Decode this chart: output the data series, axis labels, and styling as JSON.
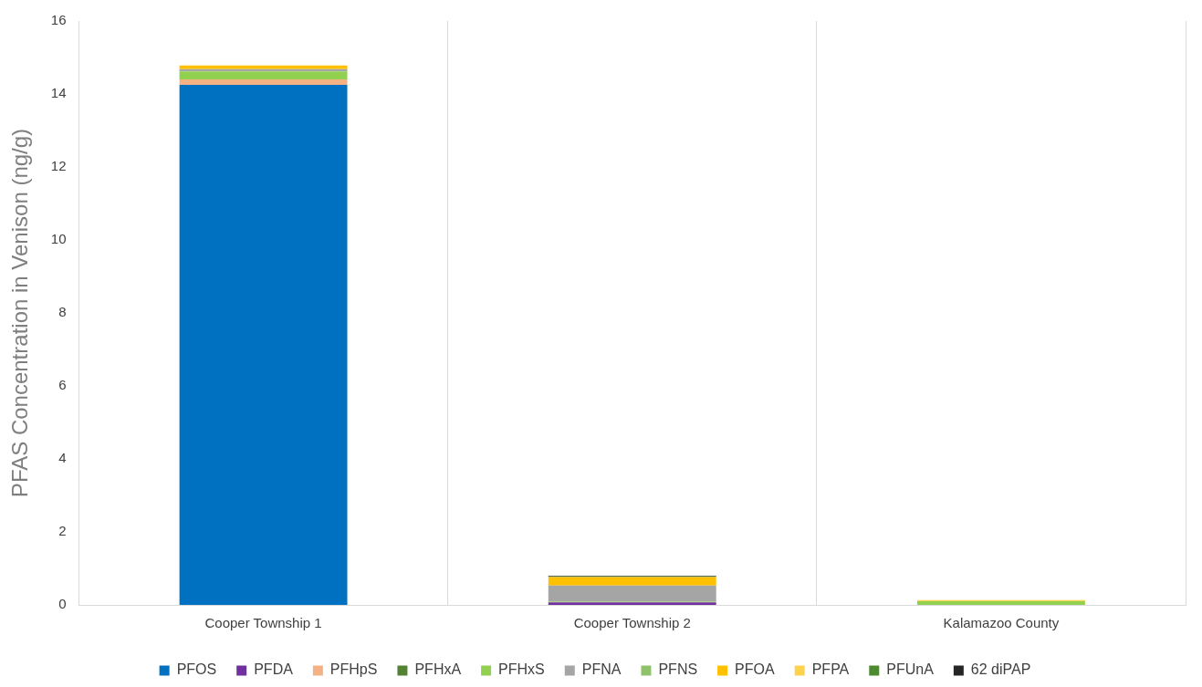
{
  "chart_data": {
    "type": "bar",
    "stacked": true,
    "ylabel": "PFAS Concentration in Venison (ng/g)",
    "categories": [
      "Cooper Township 1",
      "Cooper Township 2",
      "Kalamazoo County"
    ],
    "ylim": [
      0,
      16
    ],
    "yticks": [
      0,
      2,
      4,
      6,
      8,
      10,
      12,
      14,
      16
    ],
    "grid": "x",
    "legend": "bottom",
    "series": [
      {
        "name": "PFOS",
        "color": "#0070c0",
        "values": [
          14.25,
          null,
          null
        ]
      },
      {
        "name": "PFDA",
        "color": "#7030a0",
        "values": [
          null,
          0.07,
          null
        ]
      },
      {
        "name": "PFHpS",
        "color": "#f4b183",
        "values": [
          0.15,
          null,
          null
        ]
      },
      {
        "name": "PFHxA",
        "color": "#548235",
        "values": [
          null,
          null,
          null
        ]
      },
      {
        "name": "PFHxS",
        "color": "#92d050",
        "values": [
          0.22,
          0.02,
          0.1
        ]
      },
      {
        "name": "PFNA",
        "color": "#a5a5a5",
        "values": [
          0.06,
          0.44,
          null
        ]
      },
      {
        "name": "PFNS",
        "color": "#8fc36a",
        "values": [
          null,
          null,
          null
        ]
      },
      {
        "name": "PFOA",
        "color": "#ffc000",
        "values": [
          0.1,
          0.23,
          null
        ]
      },
      {
        "name": "PFPA",
        "color": "#ffd24d",
        "values": [
          null,
          null,
          0.03
        ]
      },
      {
        "name": "PFUnA",
        "color": "#4e8a30",
        "values": [
          null,
          0.02,
          null
        ]
      },
      {
        "name": "62 diPAP",
        "color": "#262626",
        "values": [
          null,
          0.02,
          null
        ]
      }
    ]
  }
}
